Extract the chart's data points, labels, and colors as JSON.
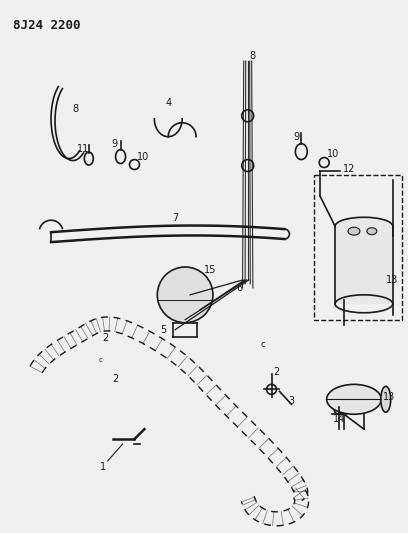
{
  "title": "8J24 2200",
  "bg_color": "#f0f0f0",
  "line_color": "#1a1a1a",
  "fig_width": 4.08,
  "fig_height": 5.33,
  "dpi": 100
}
